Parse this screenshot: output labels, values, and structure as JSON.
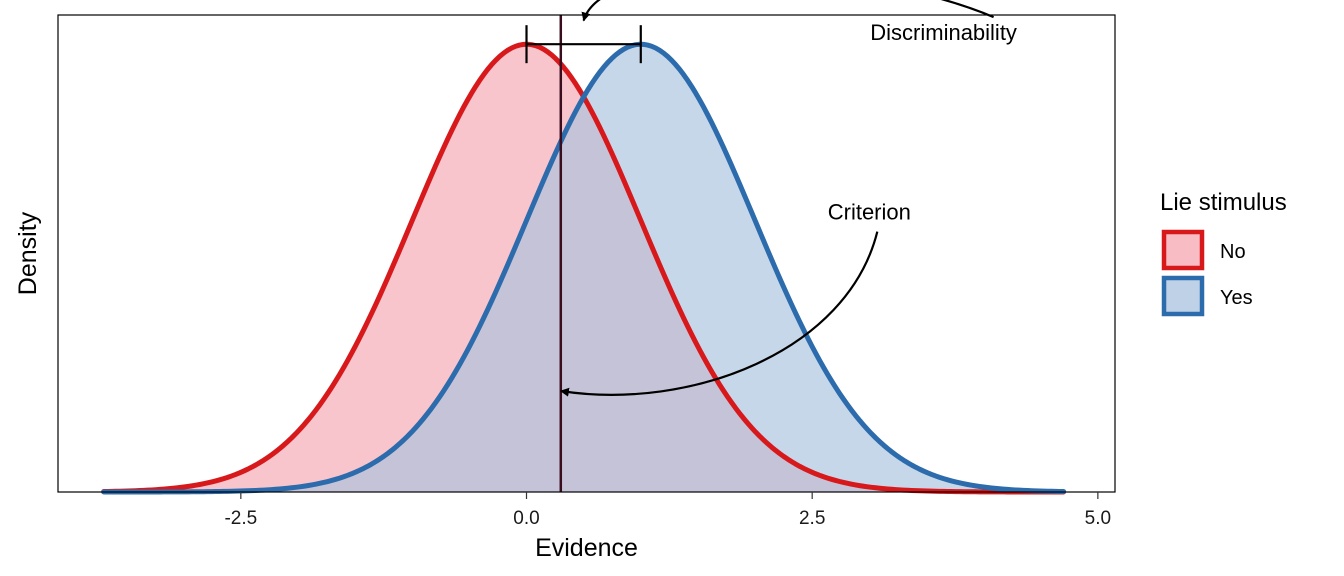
{
  "chart_data": {
    "type": "area",
    "title": "",
    "xlabel": "Evidence",
    "ylabel": "Density",
    "xlim": [
      -4.1,
      5.15
    ],
    "ylim": [
      0,
      0.425
    ],
    "x_ticks": [
      -2.5,
      0.0,
      2.5,
      5.0
    ],
    "x_tick_labels": [
      "-2.5",
      "0.0",
      "2.5",
      "5.0"
    ],
    "y_ticks_shown": false,
    "grid": false,
    "x_range": [
      -3.7,
      4.7
    ],
    "series": [
      {
        "name": "No",
        "mean": 0.0,
        "sd": 1.0,
        "line_color": "#D7191C",
        "fill_color": "#F4A6B0"
      },
      {
        "name": "Yes",
        "mean": 1.0,
        "sd": 1.0,
        "line_color": "#2C6BAC",
        "fill_color": "#A9C2DF"
      }
    ],
    "criterion": 0.3,
    "discriminability": {
      "from": 0.0,
      "to": 1.0,
      "y": 0.399
    },
    "annotations": [
      {
        "text": "Discriminability",
        "x": 3.65,
        "y": 0.408,
        "arrow_to": [
          0.5,
          0.42
        ]
      },
      {
        "text": "Criterion",
        "x": 3.0,
        "y": 0.248,
        "arrow_to": [
          0.3,
          0.09
        ]
      }
    ],
    "legend": {
      "title": "Lie stimulus",
      "position": "right",
      "entries": [
        "No",
        "Yes"
      ]
    }
  }
}
